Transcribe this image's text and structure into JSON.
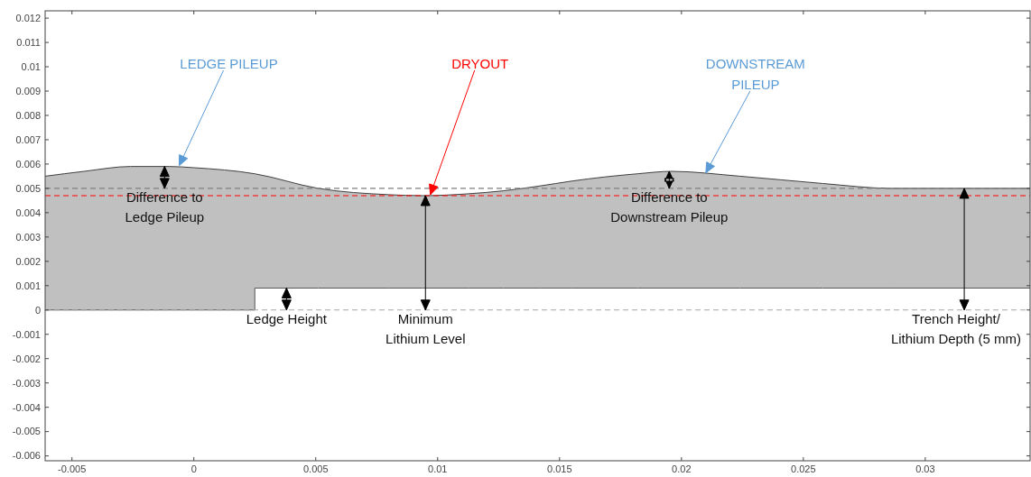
{
  "chart_data": {
    "type": "area",
    "x": [
      -0.0061,
      -0.0045,
      -0.0026,
      -0.001,
      0,
      0.0025,
      0.0051,
      0.008,
      0.0094,
      0.0113,
      0.0127,
      0.0142,
      0.0155,
      0.0182,
      0.0196,
      0.0224,
      0.0258,
      0.0286,
      0.0343
    ],
    "series": [
      {
        "color": "#c0c0c0",
        "values": [
          0.0055,
          0.0057,
          0.0059,
          0.0059,
          0.00585,
          0.0056,
          0.005,
          0.00474,
          0.0047,
          0.00478,
          0.0049,
          0.0051,
          0.0053,
          0.0056,
          0.0057,
          0.0055,
          0.0052,
          0.005,
          0.005
        ]
      },
      {
        "type": "step",
        "color": "#595959",
        "values": [
          0,
          0,
          0,
          0,
          0,
          0.0009,
          0.0009,
          0.0009,
          0.0009,
          0.0009,
          0.0009,
          0.0009,
          0.0009,
          0.0009,
          0.0009,
          0.0009,
          0.0009,
          0.0009,
          0.0009
        ]
      }
    ],
    "xlim": [
      -0.0061,
      0.0343
    ],
    "ylim": [
      -0.0062,
      0.0123
    ],
    "xticks": [
      -0.005,
      0,
      0.005,
      0.01,
      0.015,
      0.02,
      0.025,
      0.03
    ],
    "yticks": [
      -0.006,
      -0.005,
      -0.004,
      -0.003,
      -0.002,
      -0.001,
      0,
      0.001,
      0.002,
      0.003,
      0.004,
      0.005,
      0.006,
      0.007,
      0.008,
      0.009,
      0.01,
      0.011,
      0.012
    ],
    "ref_lines": [
      {
        "axis": "y",
        "value": 0.005,
        "color": "#7f7f7f",
        "line_style": "dashed"
      },
      {
        "axis": "y",
        "value": 0.0047,
        "color": "#ff0000",
        "line_style": "dashed"
      },
      {
        "axis": "y",
        "value": 0,
        "color": "#a6a6a6",
        "line_style": "dashed"
      }
    ],
    "annotations": [
      {
        "text": "LEDGE PILEUP",
        "x": -0.0006,
        "y": 0.0059
      },
      {
        "text": "DRYOUT",
        "x": 0.0097,
        "y": 0.0047
      },
      {
        "text": "DOWNSTREAM\nPILEUP",
        "x": 0.021,
        "y": 0.0056
      },
      {
        "text": "Difference to\nLedge Pileup",
        "x": -0.0012,
        "y": 0.0059
      },
      {
        "text": "Difference to\nDownstream Pileup",
        "x": 0.0195,
        "y": 0.0057
      },
      {
        "text": "Ledge Height",
        "x": 0.0038,
        "y": 0.0009
      },
      {
        "text": "Minimum\nLithium Level",
        "x": 0.0095,
        "y": 0.0047
      },
      {
        "text": "Trench Height/\nLithium Depth (5 mm)",
        "x": 0.0316,
        "y": 0.005
      }
    ]
  }
}
